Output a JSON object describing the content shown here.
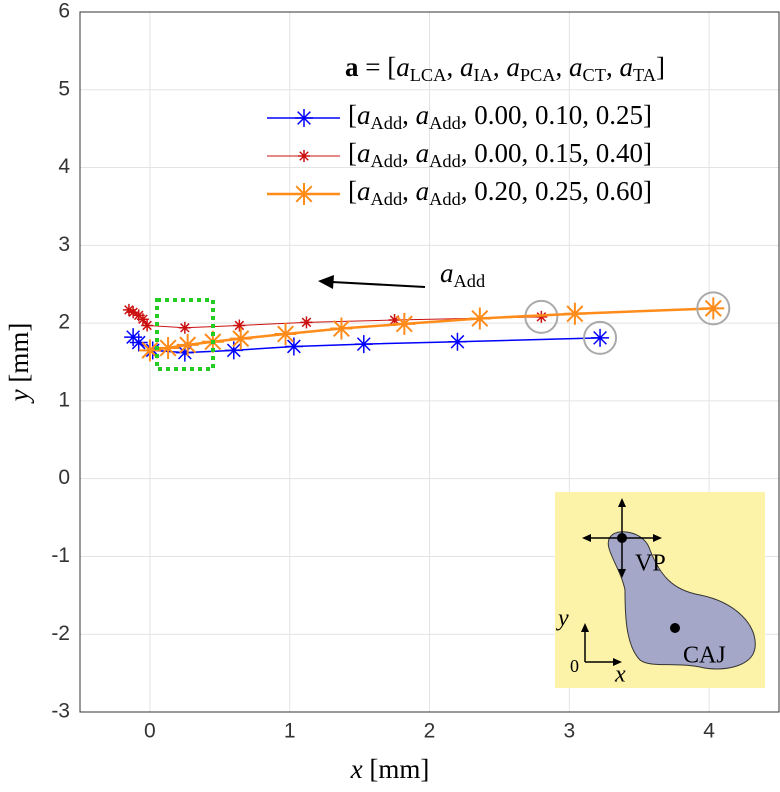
{
  "chart_data": {
    "type": "line",
    "xlabel": "x [mm]",
    "ylabel": "y [mm]",
    "legend_title": "a = [aLCA, aIA, aPCA, aCT, aTA]",
    "xlim": [
      -0.5,
      4.5
    ],
    "ylim": [
      -3,
      6
    ],
    "xticks": [
      0,
      1,
      2,
      3,
      4
    ],
    "yticks": [
      -3,
      -2,
      -1,
      0,
      1,
      2,
      3,
      4,
      5,
      6
    ],
    "grid": true,
    "legend": "top-right",
    "series": [
      {
        "name": "[aAdd, aAdd, 0.00, 0.10, 0.25]",
        "color": "#0000ff",
        "linewidth": 1.5,
        "markersize": 9,
        "x": [
          -0.12,
          -0.08,
          0.02,
          0.25,
          0.6,
          1.03,
          1.53,
          2.2,
          3.22
        ],
        "values": [
          1.82,
          1.75,
          1.65,
          1.62,
          1.65,
          1.7,
          1.73,
          1.76,
          1.81
        ]
      },
      {
        "name": "[aAdd, aAdd, 0.00, 0.15, 0.40]",
        "color": "#cc1010",
        "linewidth": 1,
        "markersize": 6,
        "x": [
          -0.15,
          -0.12,
          -0.08,
          -0.05,
          -0.02,
          0.25,
          0.64,
          1.12,
          1.75,
          2.8
        ],
        "values": [
          2.17,
          2.14,
          2.1,
          2.05,
          1.97,
          1.94,
          1.97,
          2.01,
          2.04,
          2.08
        ]
      },
      {
        "name": "[aAdd, aAdd, 0.20, 0.25, 0.60]",
        "color": "#ff8c1a",
        "linewidth": 2.5,
        "markersize": 11,
        "x": [
          0.0,
          0.13,
          0.27,
          0.45,
          0.65,
          0.97,
          1.37,
          1.82,
          2.36,
          3.04,
          4.03
        ],
        "values": [
          1.65,
          1.68,
          1.72,
          1.76,
          1.8,
          1.86,
          1.93,
          1.99,
          2.06,
          2.12,
          2.19
        ]
      }
    ],
    "annotations": {
      "arrow_label": "aAdd",
      "inset": [
        "VP",
        "CAJ",
        "y",
        "x",
        "0"
      ]
    }
  }
}
